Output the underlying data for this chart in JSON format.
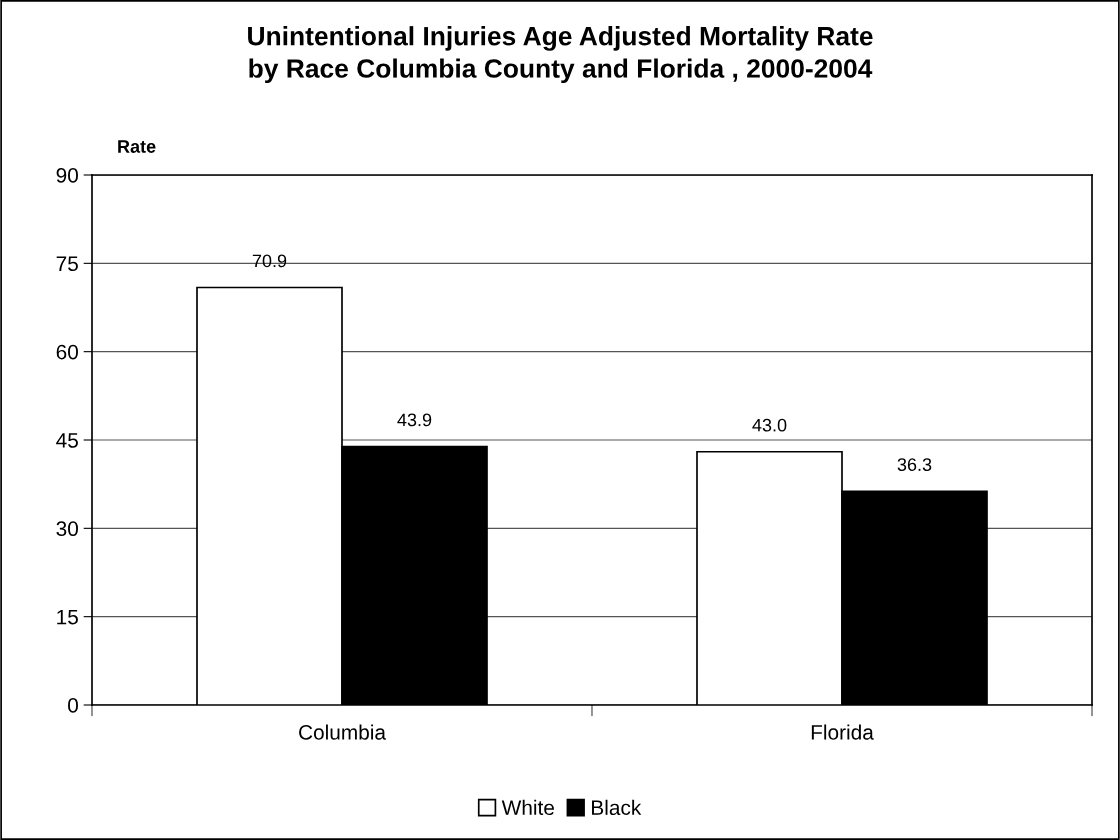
{
  "chart_data": {
    "type": "bar",
    "title": "Unintentional Injuries Age Adjusted Mortality Rate\nby Race Columbia County and Florida , 2000-2004",
    "ylabel": "Rate",
    "categories": [
      "Columbia",
      "Florida"
    ],
    "series": [
      {
        "name": "White",
        "color": "#ffffff",
        "values": [
          70.9,
          43.0
        ],
        "value_labels": [
          "70.9",
          "43.0"
        ]
      },
      {
        "name": "Black",
        "color": "#000000",
        "values": [
          43.9,
          36.3
        ],
        "value_labels": [
          "43.9",
          "36.3"
        ]
      }
    ],
    "ylim": [
      0,
      90
    ],
    "yticks": [
      0,
      15,
      30,
      45,
      60,
      75,
      90
    ],
    "grid": "y",
    "legend": "bottom"
  }
}
